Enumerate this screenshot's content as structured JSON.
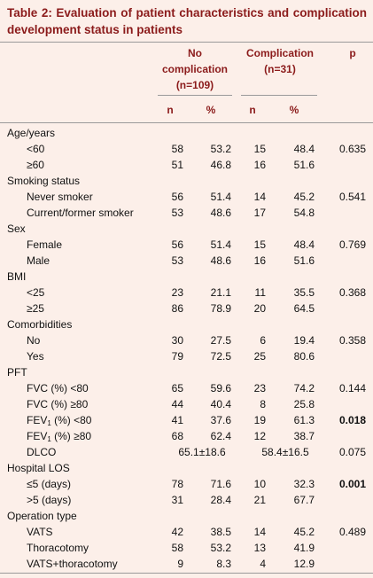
{
  "title": "Table 2: Evaluation of patient characteristics and complication development status in patients",
  "header": {
    "groups": [
      "No complication (n=109)",
      "Complication (n=31)"
    ],
    "p": "p",
    "subheaders": [
      "n",
      "%",
      "n",
      "%"
    ]
  },
  "rows": [
    {
      "label": "Age/years"
    },
    {
      "label": "<60",
      "cells": [
        "58",
        "53.2",
        "15",
        "48.4"
      ],
      "p": "0.635"
    },
    {
      "label": "≥60",
      "cells": [
        "51",
        "46.8",
        "16",
        "51.6"
      ]
    },
    {
      "label": "Smoking status"
    },
    {
      "label": "Never smoker",
      "cells": [
        "56",
        "51.4",
        "14",
        "45.2"
      ],
      "p": "0.541"
    },
    {
      "label": "Current/former smoker",
      "cells": [
        "53",
        "48.6",
        "17",
        "54.8"
      ]
    },
    {
      "label": "Sex"
    },
    {
      "label": "Female",
      "cells": [
        "56",
        "51.4",
        "15",
        "48.4"
      ],
      "p": "0.769"
    },
    {
      "label": "Male",
      "cells": [
        "53",
        "48.6",
        "16",
        "51.6"
      ]
    },
    {
      "label": "BMI"
    },
    {
      "label": "<25",
      "cells": [
        "23",
        "21.1",
        "11",
        "35.5"
      ],
      "p": "0.368"
    },
    {
      "label": "≥25",
      "cells": [
        "86",
        "78.9",
        "20",
        "64.5"
      ]
    },
    {
      "label": "Comorbidities"
    },
    {
      "label": "No",
      "cells": [
        "30",
        "27.5",
        "6",
        "19.4"
      ],
      "p": "0.358"
    },
    {
      "label": "Yes",
      "cells": [
        "79",
        "72.5",
        "25",
        "80.6"
      ]
    },
    {
      "label": "PFT"
    },
    {
      "label": "FVC (%) <80",
      "cells": [
        "65",
        "59.6",
        "23",
        "74.2"
      ],
      "p": "0.144"
    },
    {
      "label": "FVC (%) ≥80",
      "cells": [
        "44",
        "40.4",
        "8",
        "25.8"
      ]
    },
    {
      "label_parts": [
        "FEV",
        "1",
        " (%) <80"
      ],
      "cells": [
        "41",
        "37.6",
        "19",
        "61.3"
      ],
      "p": "0.018",
      "p_bold": true
    },
    {
      "label_parts": [
        "FEV",
        "1",
        " (%) ≥80"
      ],
      "cells": [
        "68",
        "62.4",
        "12",
        "38.7"
      ]
    },
    {
      "label": "DLCO",
      "cells": [
        "65.1±18.6",
        "58.4±16.5"
      ],
      "p": "0.075"
    },
    {
      "label": "Hospital LOS"
    },
    {
      "label": "≤5 (days)",
      "cells": [
        "78",
        "71.6",
        "10",
        "32.3"
      ],
      "p": "0.001",
      "p_bold": true
    },
    {
      "label": ">5 (days)",
      "cells": [
        "31",
        "28.4",
        "21",
        "67.7"
      ]
    },
    {
      "label": "Operation type"
    },
    {
      "label": "VATS",
      "cells": [
        "42",
        "38.5",
        "14",
        "45.2"
      ],
      "p": "0.489"
    },
    {
      "label": "Thoracotomy",
      "cells": [
        "58",
        "53.2",
        "13",
        "41.9"
      ]
    },
    {
      "label": "VATS+thoracotomy",
      "cells": [
        "9",
        "8.3",
        "4",
        "12.9"
      ]
    }
  ]
}
